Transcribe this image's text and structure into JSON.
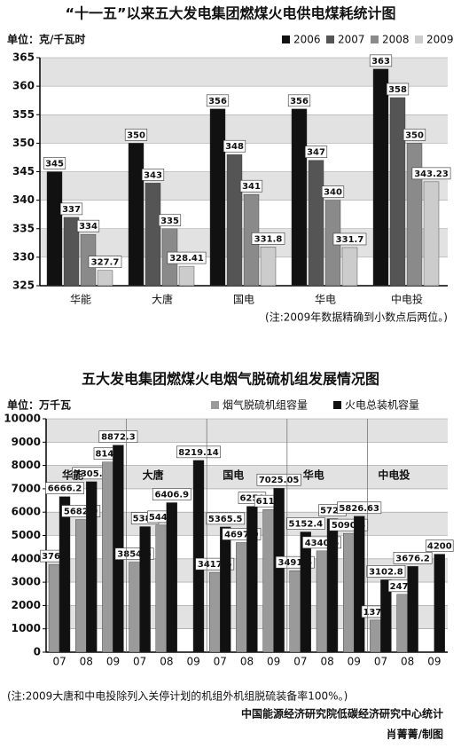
{
  "chart_data": [
    {
      "type": "bar",
      "title": "“十一五”以来五大发电集团燃煤火电供电煤耗统计图",
      "y_label": "单位：克/千瓦时",
      "categories": [
        "华能",
        "大唐",
        "国电",
        "华电",
        "中电投"
      ],
      "series": [
        {
          "name": "2006",
          "color": "#111111",
          "values": [
            345,
            350,
            356,
            356,
            363
          ]
        },
        {
          "name": "2007",
          "color": "#555555",
          "values": [
            337,
            343,
            348,
            347,
            358
          ]
        },
        {
          "name": "2008",
          "color": "#8a8a8a",
          "values": [
            334,
            335,
            341,
            340,
            350
          ]
        },
        {
          "name": "2009",
          "color": "#cccccc",
          "values": [
            327.7,
            328.41,
            331.8,
            331.7,
            343.23
          ]
        }
      ],
      "ylim": [
        325,
        365
      ],
      "yticks": [
        325,
        330,
        335,
        340,
        345,
        350,
        355,
        360,
        365
      ],
      "grid": true,
      "note": "(注:2009年数据精确到小数点后两位。)"
    },
    {
      "type": "grouped-bar",
      "title": "五大发电集团燃煤火电烟气脱硫机组发展情况图",
      "y_label": "单位：万千瓦",
      "groups": [
        "华能",
        "大唐",
        "国电",
        "华电",
        "中电投"
      ],
      "categories": [
        "07",
        "08",
        "09",
        "07",
        "08",
        "09",
        "07",
        "08",
        "09",
        "07",
        "08",
        "09",
        "07",
        "08",
        "09"
      ],
      "series": [
        {
          "name": "烟气脱硫机组容量",
          "color": "#9a9a9a",
          "values": [
            3760,
            5682.9,
            8148,
            3854.5,
            5443,
            null,
            3417.6,
            4697.9,
            6114,
            3491.5,
            4340.5,
            5090.5,
            1373,
            2478,
            null
          ]
        },
        {
          "name": "火电总装机容量",
          "color": "#111111",
          "values": [
            6666.2,
            7305.6,
            8872.3,
            5380,
            6406.9,
            8219.14,
            5365.5,
            6250,
            7025.05,
            5152.4,
            5720,
            5826.63,
            3102.8,
            3676.2,
            4200
          ]
        }
      ],
      "ylim": [
        0,
        10000
      ],
      "yticks": [
        0,
        1000,
        2000,
        3000,
        4000,
        5000,
        6000,
        7000,
        8000,
        9000,
        10000
      ],
      "grid": true,
      "note": "(注:2009大唐和中电投除列入关停计划的机组外机组脱硫装备率100%。)"
    }
  ],
  "footer": {
    "source": "中国能源经济研究院低碳经济研究中心统计",
    "credit": "肖菁菁/制图"
  }
}
